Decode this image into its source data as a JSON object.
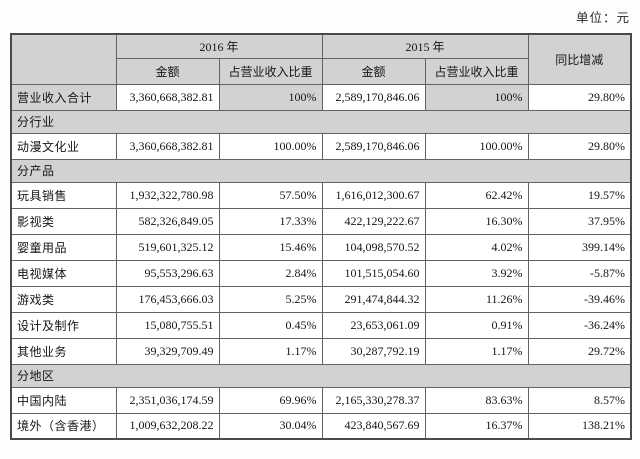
{
  "unit_label": "单位：元",
  "colors": {
    "header_bg": "#d2d2d2",
    "section_bg": "#d2d2d2",
    "border": "#636363",
    "text": "#161616",
    "page_bg": "#fdfdfd"
  },
  "table": {
    "header": {
      "corner": "",
      "group_2016": "2016 年",
      "group_2015": "2015 年",
      "yoy": "同比增减",
      "amount_2016": "金额",
      "share_2016": "占营业收入比重",
      "amount_2015": "金额",
      "share_2015": "占营业收入比重"
    },
    "rows": [
      {
        "type": "data",
        "highlight": true,
        "label": "营业收入合计",
        "amount_2016": "3,360,668,382.81",
        "share_2016": "100%",
        "amount_2015": "2,589,170,846.06",
        "share_2015": "100%",
        "yoy": "29.80%"
      },
      {
        "type": "section",
        "label": "分行业"
      },
      {
        "type": "data",
        "label": "动漫文化业",
        "amount_2016": "3,360,668,382.81",
        "share_2016": "100.00%",
        "amount_2015": "2,589,170,846.06",
        "share_2015": "100.00%",
        "yoy": "29.80%"
      },
      {
        "type": "section",
        "label": "分产品"
      },
      {
        "type": "data",
        "label": "玩具销售",
        "amount_2016": "1,932,322,780.98",
        "share_2016": "57.50%",
        "amount_2015": "1,616,012,300.67",
        "share_2015": "62.42%",
        "yoy": "19.57%"
      },
      {
        "type": "data",
        "label": "影视类",
        "amount_2016": "582,326,849.05",
        "share_2016": "17.33%",
        "amount_2015": "422,129,222.67",
        "share_2015": "16.30%",
        "yoy": "37.95%"
      },
      {
        "type": "data",
        "label": "婴童用品",
        "amount_2016": "519,601,325.12",
        "share_2016": "15.46%",
        "amount_2015": "104,098,570.52",
        "share_2015": "4.02%",
        "yoy": "399.14%"
      },
      {
        "type": "data",
        "label": "电视媒体",
        "amount_2016": "95,553,296.63",
        "share_2016": "2.84%",
        "amount_2015": "101,515,054.60",
        "share_2015": "3.92%",
        "yoy": "-5.87%"
      },
      {
        "type": "data",
        "label": "游戏类",
        "amount_2016": "176,453,666.03",
        "share_2016": "5.25%",
        "amount_2015": "291,474,844.32",
        "share_2015": "11.26%",
        "yoy": "-39.46%"
      },
      {
        "type": "data",
        "label": "设计及制作",
        "amount_2016": "15,080,755.51",
        "share_2016": "0.45%",
        "amount_2015": "23,653,061.09",
        "share_2015": "0.91%",
        "yoy": "-36.24%"
      },
      {
        "type": "data",
        "label": "其他业务",
        "amount_2016": "39,329,709.49",
        "share_2016": "1.17%",
        "amount_2015": "30,287,792.19",
        "share_2015": "1.17%",
        "yoy": "29.72%"
      },
      {
        "type": "section",
        "label": "分地区"
      },
      {
        "type": "data",
        "label": "中国内陆",
        "amount_2016": "2,351,036,174.59",
        "share_2016": "69.96%",
        "amount_2015": "2,165,330,278.37",
        "share_2015": "83.63%",
        "yoy": "8.57%"
      },
      {
        "type": "data",
        "label": "境外（含香港）",
        "amount_2016": "1,009,632,208.22",
        "share_2016": "30.04%",
        "amount_2015": "423,840,567.69",
        "share_2015": "16.37%",
        "yoy": "138.21%"
      }
    ]
  }
}
